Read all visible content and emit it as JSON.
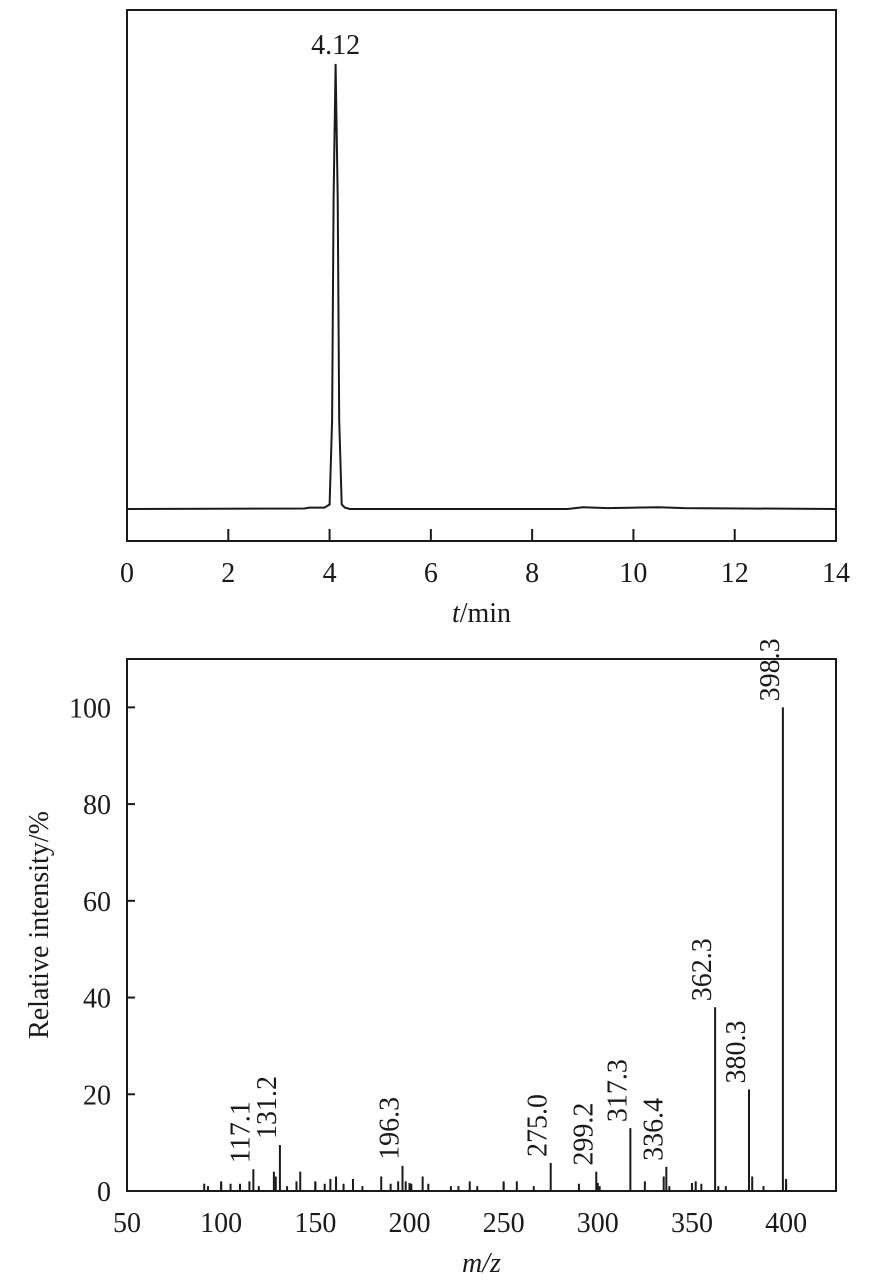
{
  "chart_data": [
    {
      "type": "line",
      "x_label": {
        "italic": "t",
        "rest": "/min"
      },
      "xlim": [
        0,
        14
      ],
      "xticks": [
        0,
        2,
        4,
        6,
        8,
        10,
        12,
        14
      ],
      "ylim": [
        -7.2,
        112.1
      ],
      "color": "#1a1a1a",
      "x": [
        0,
        3.5,
        3.6,
        3.9,
        4.0,
        4.05,
        4.08,
        4.12,
        4.16,
        4.19,
        4.24,
        4.3,
        4.4,
        8.7,
        9.0,
        9.5,
        10.5,
        11,
        14
      ],
      "values": [
        0,
        0.1,
        0.3,
        0.3,
        1,
        20,
        70,
        100,
        70,
        20,
        1,
        0.3,
        0,
        0,
        0.4,
        0.2,
        0.4,
        0.2,
        0
      ],
      "annotations": [
        {
          "text": "4.12",
          "x": 4.12,
          "y": 100
        }
      ]
    },
    {
      "type": "bar",
      "x_label": {
        "italic": "m/z"
      },
      "y_label": "Relative intensity/%",
      "xlim": [
        50,
        426.5
      ],
      "xticks": [
        50,
        100,
        150,
        200,
        250,
        300,
        350,
        400
      ],
      "ylim": [
        0,
        110
      ],
      "yticks": [
        0,
        20,
        40,
        60,
        80,
        100
      ],
      "color": "#1a1a1a",
      "x": [
        91,
        93,
        100,
        105,
        110,
        115,
        117.1,
        120,
        128,
        129,
        131.2,
        135,
        140,
        142,
        150,
        155,
        158,
        161,
        165,
        170,
        175,
        185,
        190,
        194,
        196.3,
        198,
        201,
        207,
        210,
        222,
        226,
        232,
        236,
        250,
        257,
        266,
        275,
        290,
        299.2,
        301,
        317.3,
        325,
        335,
        336.4,
        338,
        352,
        355,
        362.3,
        364,
        368,
        380.3,
        382,
        388,
        398.3,
        400
      ],
      "values": [
        1.5,
        1,
        2,
        1.5,
        1.5,
        2,
        4.5,
        1,
        4,
        3,
        9.5,
        1,
        2,
        4,
        2,
        1.5,
        2.5,
        3,
        1.5,
        2.5,
        1,
        3,
        1.5,
        2,
        5.2,
        2,
        1.5,
        3,
        1.5,
        1,
        1,
        2,
        1,
        2,
        2,
        1,
        5.8,
        1.5,
        4,
        1,
        13,
        2,
        3,
        5,
        1,
        2,
        1.5,
        38,
        1,
        1,
        21,
        3,
        1,
        100,
        2.5
      ],
      "peak_labels": [
        null,
        null,
        null,
        null,
        null,
        null,
        "117.1",
        null,
        null,
        null,
        "131.2",
        null,
        null,
        null,
        null,
        null,
        null,
        null,
        null,
        null,
        null,
        null,
        null,
        null,
        "196.3",
        null,
        null,
        null,
        null,
        null,
        null,
        null,
        null,
        null,
        null,
        null,
        "275.0",
        null,
        "299.2",
        null,
        "317.3",
        null,
        null,
        "336.4",
        null,
        null,
        null,
        "362.3",
        null,
        null,
        "380.3",
        null,
        null,
        "398.3",
        null
      ]
    }
  ]
}
